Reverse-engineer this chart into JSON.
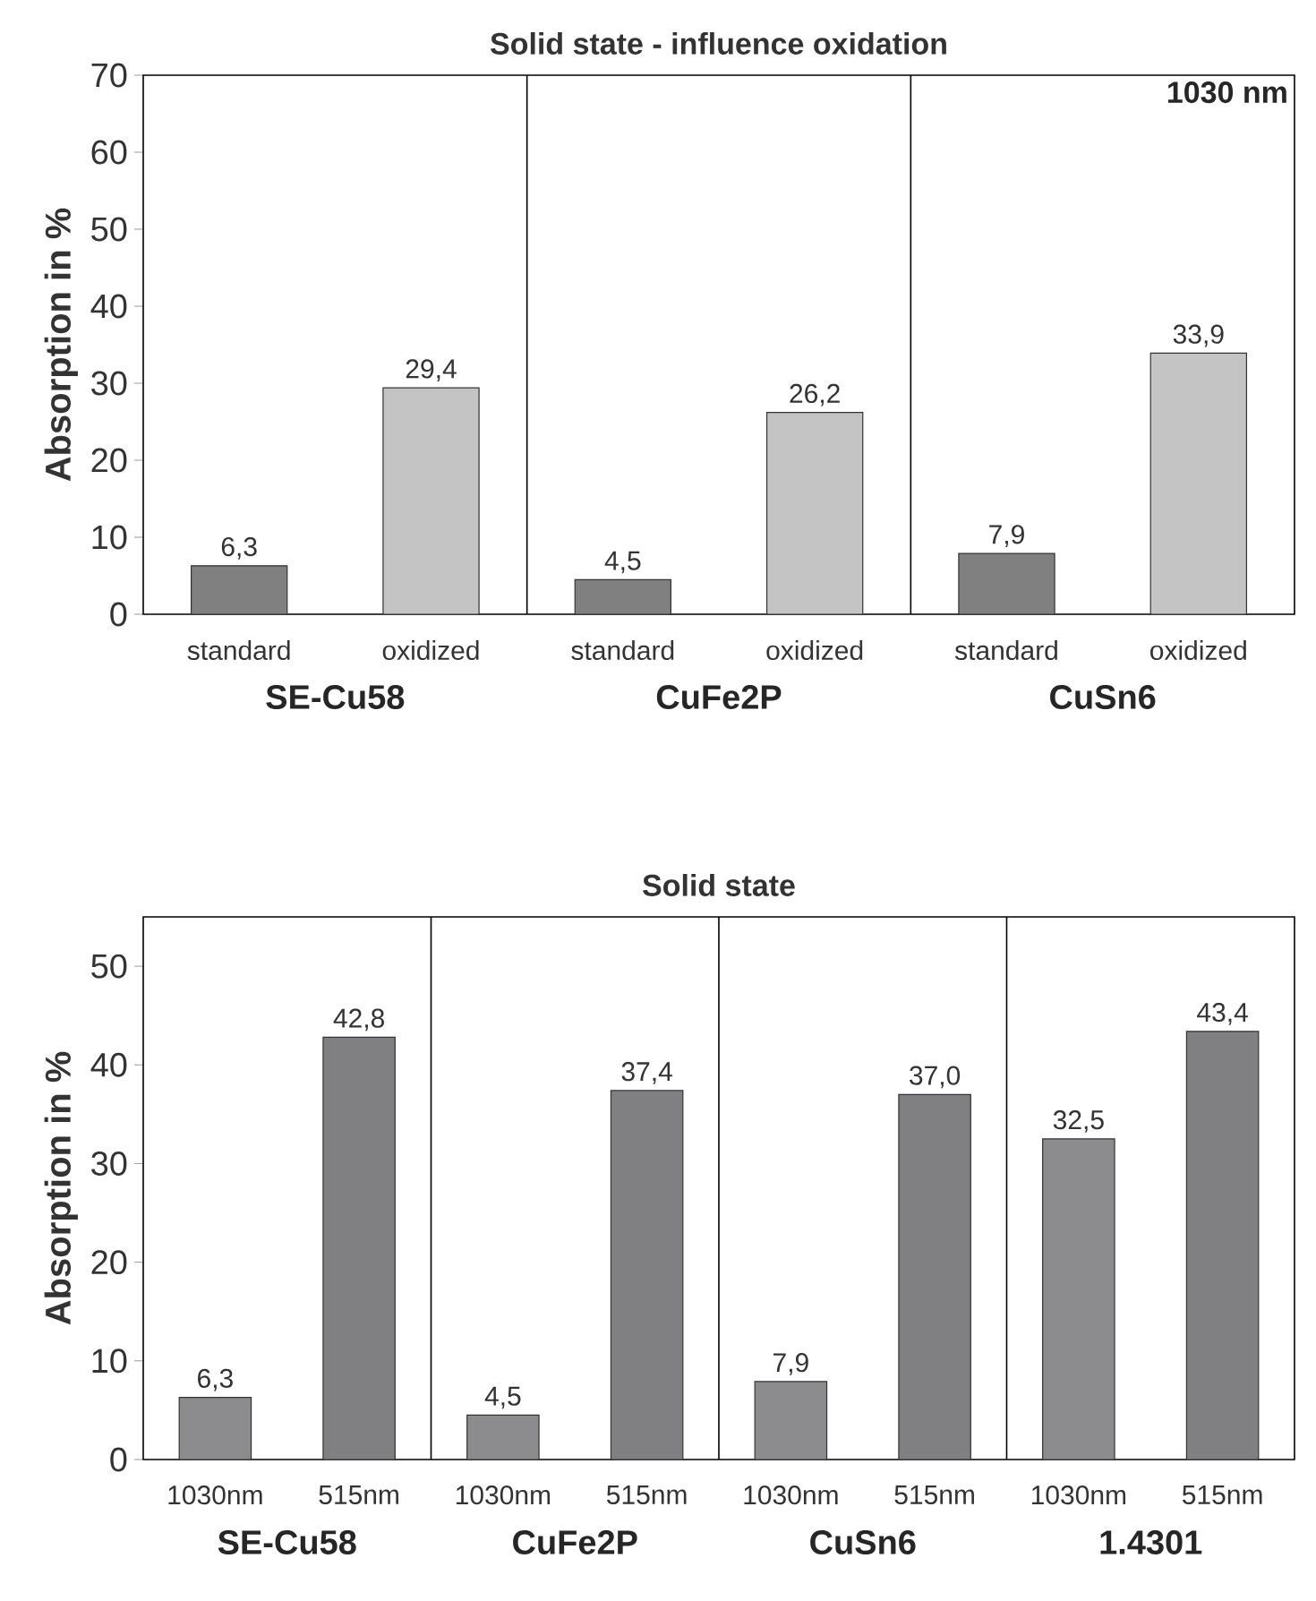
{
  "chart_data": [
    {
      "type": "bar",
      "title": "Solid state - influence oxidation",
      "ylabel": "Absorption in %",
      "categories": [
        "standard",
        "oxidized",
        "standard",
        "oxidized",
        "standard",
        "oxidized"
      ],
      "values": [
        6.3,
        29.4,
        4.5,
        26.2,
        7.9,
        33.9
      ],
      "value_labels": [
        "6,3",
        "29,4",
        "4,5",
        "26,2",
        "7,9",
        "33,9"
      ],
      "colors": [
        "#808080",
        "#c4c4c4",
        "#808080",
        "#c4c4c4",
        "#808080",
        "#c4c4c4"
      ],
      "ylim": [
        0,
        70
      ],
      "yticks": [
        0,
        10,
        20,
        30,
        40,
        50,
        60,
        70
      ],
      "annotations": [
        "SE-Cu58",
        "CuFe2P",
        "CuSn6",
        "1030 nm"
      ]
    },
    {
      "type": "bar",
      "title": "Solid state",
      "ylabel": "Absorption in %",
      "categories": [
        "1030nm",
        "515nm",
        "1030nm",
        "515nm",
        "1030nm",
        "515nm",
        "1030nm",
        "515nm"
      ],
      "values": [
        6.3,
        42.8,
        4.5,
        37.4,
        7.9,
        37.0,
        32.5,
        43.4
      ],
      "value_labels": [
        "6,3",
        "42,8",
        "4,5",
        "37,4",
        "7,9",
        "37,0",
        "32,5",
        "43,4"
      ],
      "colors": [
        "#8c8c8e",
        "#808082",
        "#8c8c8e",
        "#808082",
        "#8c8c8e",
        "#808082",
        "#8c8c8e",
        "#808082"
      ],
      "ylim": [
        0,
        55
      ],
      "yticks": [
        0,
        10,
        20,
        30,
        40,
        50
      ],
      "annotations": [
        "SE-Cu58",
        "CuFe2P",
        "CuSn6",
        "1.4301"
      ]
    }
  ]
}
